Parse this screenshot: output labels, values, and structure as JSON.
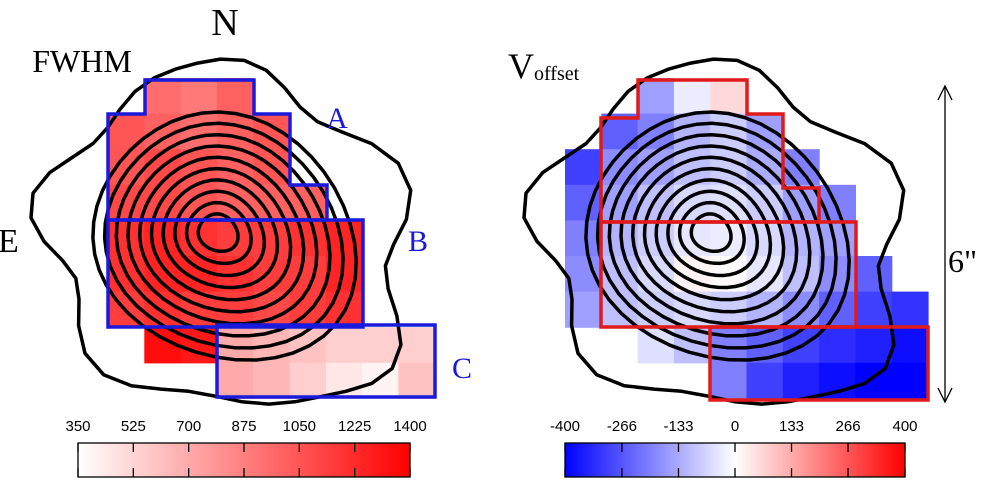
{
  "chart_data": [
    {
      "type": "heatmap",
      "title": "FWHM",
      "clim": [
        350,
        1400
      ],
      "cticks": [
        350,
        525,
        700,
        875,
        1050,
        1225,
        1400
      ],
      "colormap": [
        "#ffffff",
        "#ff0000"
      ],
      "region_labels": [
        "A",
        "B",
        "C"
      ],
      "region_color": "#1a1adc",
      "annotations": {
        "north": "N",
        "east": "E"
      },
      "cells": [
        [
          null,
          950,
          900,
          1000,
          null,
          null,
          null,
          null,
          null
        ],
        [
          1050,
          1000,
          950,
          1000,
          1050,
          null,
          null,
          null,
          null
        ],
        [
          1050,
          1100,
          1050,
          1000,
          1050,
          null,
          null,
          null,
          null
        ],
        [
          1100,
          1100,
          1050,
          1000,
          1000,
          1000,
          null,
          null,
          null
        ],
        [
          1200,
          1250,
          1200,
          1150,
          1150,
          1200,
          1250,
          null,
          null
        ],
        [
          1200,
          1250,
          1250,
          1200,
          1150,
          1150,
          1250,
          null,
          null
        ],
        [
          1150,
          1200,
          1150,
          1150,
          1100,
          1150,
          1200,
          null,
          null
        ],
        [
          null,
          1350,
          1300,
          700,
          650,
          600,
          550,
          550,
          550
        ],
        [
          null,
          null,
          null,
          700,
          650,
          550,
          450,
          400,
          600
        ]
      ]
    },
    {
      "type": "heatmap",
      "title": "V",
      "title_subscript": "offset",
      "clim": [
        -400,
        400
      ],
      "cticks": [
        -400,
        -266,
        -133,
        0,
        133,
        266,
        400
      ],
      "colormap": [
        "#0000ff",
        "#ffffff",
        "#ff0000"
      ],
      "annotations": {
        "scale": "6\""
      },
      "cells": [
        [
          null,
          null,
          -150,
          -30,
          60,
          null,
          null,
          null,
          null,
          null
        ],
        [
          null,
          -250,
          -200,
          -120,
          -80,
          -150,
          null,
          null,
          null,
          null
        ],
        [
          -300,
          -180,
          -150,
          -100,
          -80,
          -130,
          -200,
          null,
          null,
          null
        ],
        [
          -250,
          -150,
          -100,
          -60,
          -50,
          -80,
          -150,
          -200,
          null,
          null
        ],
        [
          -200,
          -120,
          -80,
          -40,
          -30,
          -60,
          -120,
          -150,
          null,
          null
        ],
        [
          -180,
          -100,
          -60,
          20,
          10,
          -40,
          -100,
          -180,
          -250,
          null
        ],
        [
          -150,
          -100,
          -80,
          -60,
          -80,
          -120,
          -180,
          -250,
          -300,
          -320
        ],
        [
          null,
          null,
          -50,
          -100,
          -200,
          -250,
          -300,
          -330,
          -350,
          -380
        ],
        [
          null,
          null,
          null,
          null,
          -200,
          -300,
          -350,
          -380,
          -400,
          -400
        ]
      ]
    }
  ]
}
